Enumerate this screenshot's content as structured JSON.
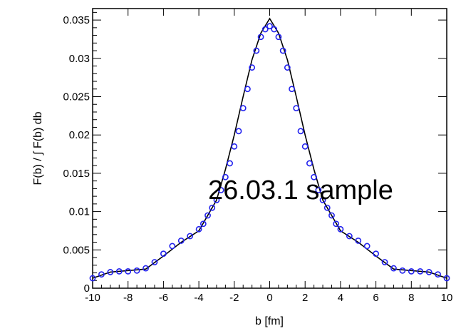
{
  "chart_data": {
    "type": "scatter",
    "xlabel": "b [fm]",
    "ylabel": "F(b) / ∫ F(b) db",
    "xlim": [
      -10,
      10
    ],
    "ylim": [
      0,
      0.0365
    ],
    "x_ticks": [
      -10,
      -8,
      -6,
      -4,
      -2,
      0,
      2,
      4,
      6,
      8,
      10
    ],
    "x_tick_labels": [
      "-10",
      "-8",
      "-6",
      "-4",
      "-2",
      "0",
      "2",
      "4",
      "6",
      "8",
      "10"
    ],
    "y_ticks": [
      0,
      0.005,
      0.01,
      0.015,
      0.02,
      0.025,
      0.03,
      0.035
    ],
    "y_tick_labels": [
      "0",
      "0.005",
      "0.01",
      "0.015",
      "0.02",
      "0.025",
      "0.03",
      "0.035"
    ],
    "grid": false,
    "series": [
      {
        "kind": "line",
        "color": "#000000",
        "x": [
          -10,
          -9,
          -8,
          -7,
          -6,
          -5,
          -4,
          -3,
          -2.5,
          -2,
          -1.5,
          -1,
          -0.5,
          0,
          0.5,
          1,
          1.5,
          2,
          2.5,
          3,
          4,
          5,
          6,
          7,
          8,
          9,
          10
        ],
        "y": [
          0.0013,
          0.0021,
          0.0023,
          0.0025,
          0.0042,
          0.006,
          0.0075,
          0.0115,
          0.0155,
          0.02,
          0.025,
          0.0298,
          0.0333,
          0.0352,
          0.0333,
          0.0298,
          0.025,
          0.02,
          0.0155,
          0.0115,
          0.0075,
          0.006,
          0.0042,
          0.0025,
          0.0023,
          0.0021,
          0.0013
        ]
      },
      {
        "kind": "markers",
        "color": "#2222ee",
        "x": [
          -10,
          -9.5,
          -9,
          -8.5,
          -8,
          -7.5,
          -7,
          -6.5,
          -6,
          -5.5,
          -5,
          -4.5,
          -4,
          -3.75,
          -3.5,
          -3.25,
          -3,
          -2.75,
          -2.5,
          -2.25,
          -2,
          -1.75,
          -1.5,
          -1.25,
          -1,
          -0.75,
          -0.5,
          -0.25,
          0,
          0.25,
          0.5,
          0.75,
          1,
          1.25,
          1.5,
          1.75,
          2,
          2.25,
          2.5,
          2.75,
          3,
          3.25,
          3.5,
          3.75,
          4,
          4.5,
          5,
          5.5,
          6,
          6.5,
          7,
          7.5,
          8,
          8.5,
          9,
          9.5,
          10
        ],
        "y": [
          0.0013,
          0.0018,
          0.0021,
          0.0022,
          0.0022,
          0.0023,
          0.0026,
          0.0034,
          0.0045,
          0.0055,
          0.0062,
          0.0068,
          0.0077,
          0.0084,
          0.0095,
          0.0105,
          0.0115,
          0.0128,
          0.0145,
          0.0163,
          0.0185,
          0.0205,
          0.0235,
          0.026,
          0.0288,
          0.031,
          0.0328,
          0.0338,
          0.0342,
          0.0338,
          0.0328,
          0.031,
          0.0288,
          0.026,
          0.0235,
          0.0205,
          0.0185,
          0.0163,
          0.0145,
          0.0128,
          0.0115,
          0.0105,
          0.0095,
          0.0084,
          0.0077,
          0.0068,
          0.0062,
          0.0055,
          0.0045,
          0.0034,
          0.0026,
          0.0023,
          0.0022,
          0.0022,
          0.0021,
          0.0018,
          0.0013
        ]
      }
    ]
  },
  "overlay_text": "26.03.1 sample"
}
